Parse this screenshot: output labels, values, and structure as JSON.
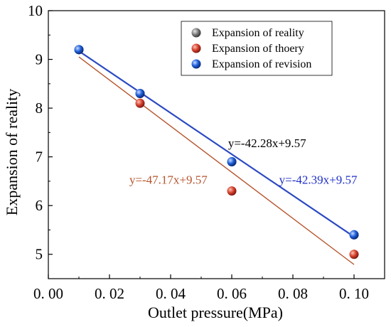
{
  "chart_data": {
    "type": "scatter",
    "xlabel": "Outlet pressure(MPa)",
    "ylabel": "Expansion of reality",
    "xlim": [
      0.0,
      0.11
    ],
    "ylim": [
      4.5,
      10
    ],
    "xticks": [
      0.0,
      0.02,
      0.04,
      0.06,
      0.08,
      0.1
    ],
    "xtick_labels": [
      "0. 00",
      "0. 02",
      "0. 04",
      "0. 06",
      "0. 08",
      "0. 10"
    ],
    "yticks": [
      5,
      6,
      7,
      8,
      9,
      10
    ],
    "ytick_labels": [
      "5",
      "6",
      "7",
      "8",
      "9",
      "10"
    ],
    "grid": false,
    "legend_position": "top-right",
    "series": [
      {
        "name": "Expansion of reality",
        "color": "#7f7f7f",
        "x": [
          0.01,
          0.03,
          0.06,
          0.1
        ],
        "y": [
          9.2,
          8.3,
          6.9,
          5.4
        ]
      },
      {
        "name": "Expansion of thoery",
        "color": "#d9412e",
        "x": [
          0.03,
          0.06,
          0.1
        ],
        "y": [
          8.1,
          6.3,
          5.0
        ]
      },
      {
        "name": "Expansion of revision",
        "color": "#1f5fd9",
        "x": [
          0.01,
          0.03,
          0.06,
          0.1
        ],
        "y": [
          9.2,
          8.3,
          6.9,
          5.4
        ]
      }
    ],
    "fit_lines": [
      {
        "color": "#b5542c",
        "x": [
          0.01,
          0.1
        ],
        "y": [
          9.05,
          4.79
        ]
      },
      {
        "color": "#2b49c2",
        "x": [
          0.01,
          0.1
        ],
        "y": [
          9.17,
          5.36
        ]
      }
    ],
    "annotations": [
      {
        "text": "y=-42.28x+9.57",
        "color": "#000000",
        "x": 0.0588,
        "y": 7.2
      },
      {
        "text": "y=-47.17x+9.57",
        "color": "#b5542c",
        "x": 0.0265,
        "y": 6.45
      },
      {
        "text": "y=-42.39x+9.57",
        "color": "#1f2fc8",
        "x": 0.0755,
        "y": 6.45
      }
    ]
  }
}
